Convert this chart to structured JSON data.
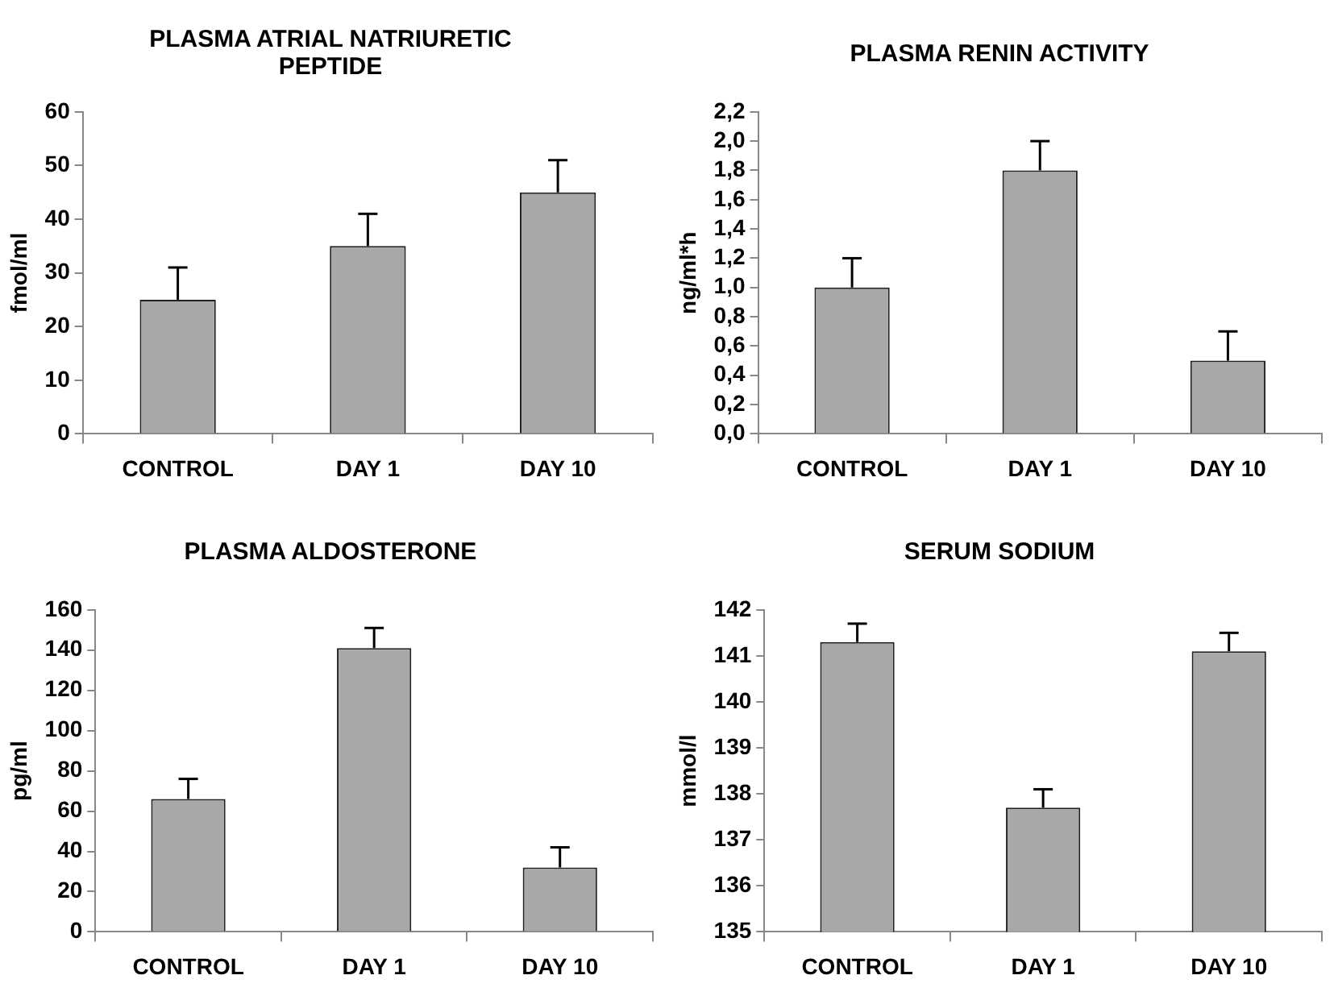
{
  "chart_data": [
    {
      "type": "bar",
      "title": "PLASMA ATRIAL NATRIURETIC PEPTIDE",
      "ylabel": "fmol/ml",
      "categories": [
        "CONTROL",
        "DAY 1",
        "DAY 10"
      ],
      "values": [
        25,
        35,
        45
      ],
      "errors": [
        [
          25,
          31
        ],
        [
          35,
          41
        ],
        [
          45,
          51
        ]
      ],
      "color": "#a8a8a8",
      "ylim": [
        0,
        60
      ],
      "yticks": [
        0,
        10,
        20,
        30,
        40,
        50,
        60
      ],
      "grid": false,
      "legend": false
    },
    {
      "type": "bar",
      "title": "PLASMA RENIN ACTIVITY",
      "ylabel": "ng/ml*h",
      "categories": [
        "CONTROL",
        "DAY 1",
        "DAY 10"
      ],
      "values": [
        1.0,
        1.8,
        0.5
      ],
      "errors": [
        [
          1.0,
          1.2
        ],
        [
          1.8,
          2.0
        ],
        [
          0.5,
          0.7
        ]
      ],
      "color": "#a8a8a8",
      "ylim": [
        0,
        2.2
      ],
      "yticks": [
        {
          "value": 0,
          "label": "0,0"
        },
        {
          "value": 0.2,
          "label": "0,2"
        },
        {
          "value": 0.4,
          "label": "0,4"
        },
        {
          "value": 0.6,
          "label": "0,6"
        },
        {
          "value": 0.8,
          "label": "0,8"
        },
        {
          "value": 1.0,
          "label": "1,0"
        },
        {
          "value": 1.2,
          "label": "1,2"
        },
        {
          "value": 1.4,
          "label": "1,4"
        },
        {
          "value": 1.6,
          "label": "1,6"
        },
        {
          "value": 1.8,
          "label": "1,8"
        },
        {
          "value": 2.0,
          "label": "2,0"
        },
        {
          "value": 2.2,
          "label": "2,2"
        }
      ],
      "grid": false,
      "legend": false
    },
    {
      "type": "bar",
      "title": "PLASMA ALDOSTERONE",
      "ylabel": "pg/ml",
      "categories": [
        "CONTROL",
        "DAY 1",
        "DAY 10"
      ],
      "values": [
        66,
        141,
        32
      ],
      "errors": [
        [
          66,
          76
        ],
        [
          141,
          151
        ],
        [
          32,
          42
        ]
      ],
      "color": "#a8a8a8",
      "ylim": [
        0,
        160
      ],
      "yticks": [
        0,
        20,
        40,
        60,
        80,
        100,
        120,
        140,
        160
      ],
      "grid": false,
      "legend": false
    },
    {
      "type": "bar",
      "title": "SERUM SODIUM",
      "ylabel": "mmol/l",
      "categories": [
        "CONTROL",
        "DAY 1",
        "DAY 10"
      ],
      "values": [
        141.3,
        137.7,
        141.1
      ],
      "errors": [
        [
          141.3,
          141.7
        ],
        [
          137.7,
          138.1
        ],
        [
          141.1,
          141.5
        ]
      ],
      "color": "#a8a8a8",
      "ylim": [
        135,
        142
      ],
      "yticks": [
        135,
        136,
        137,
        138,
        139,
        140,
        141,
        142
      ],
      "grid": false,
      "legend": false
    }
  ]
}
